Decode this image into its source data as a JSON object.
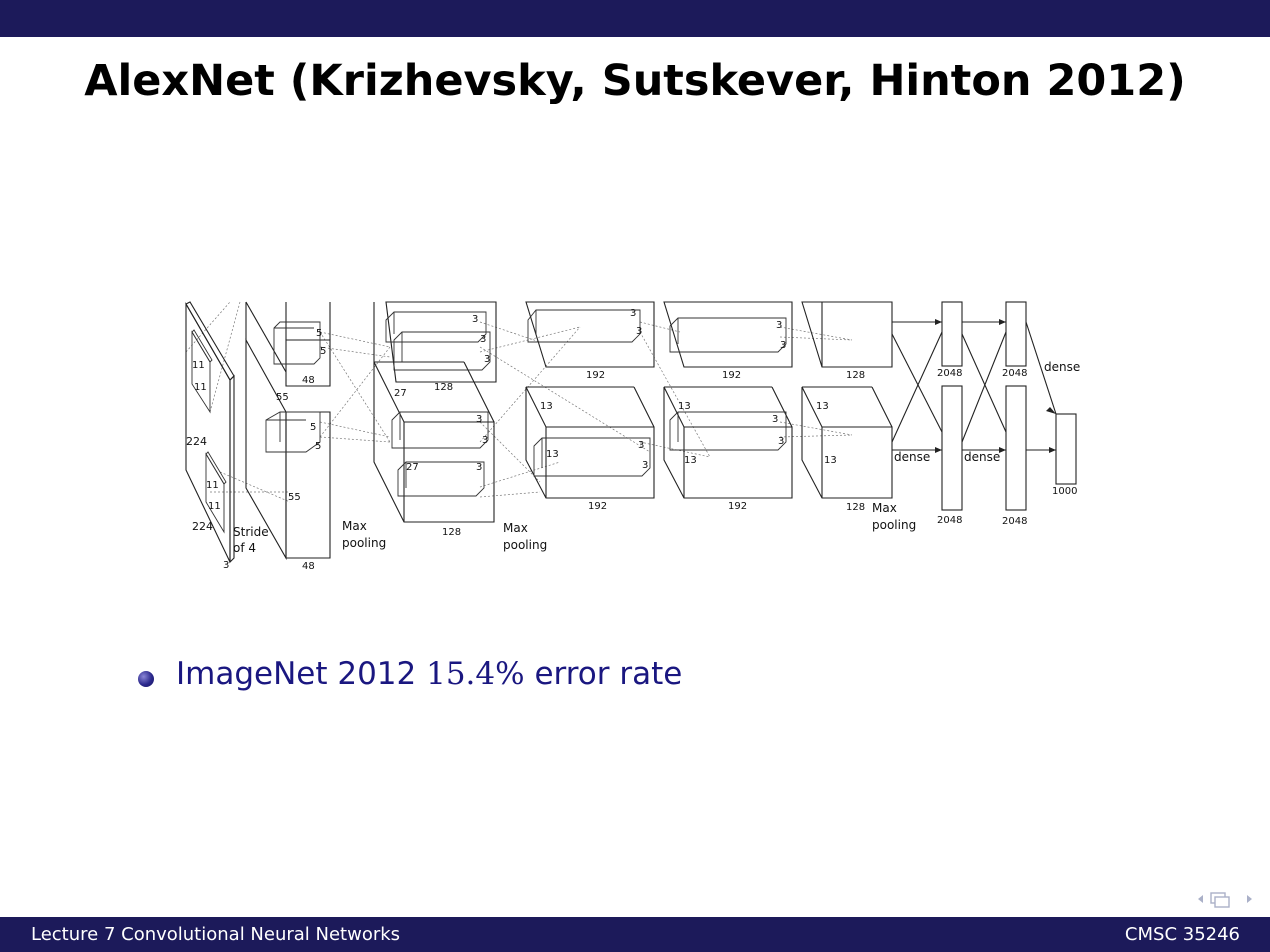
{
  "slide": {
    "title": "AlexNet (Krizhevsky, Sutskever, Hinton 2012)"
  },
  "figure": {
    "labels": {
      "input_k1": "11",
      "input_k2": "11",
      "input_k3": "11",
      "input_k4": "11",
      "input_side": "224",
      "input_bottom": "224",
      "input_depth": "3",
      "stride_line1": "Stride",
      "stride_line2": "of 4",
      "conv1_size": "55",
      "conv1_size_b": "55",
      "conv1_k1": "5",
      "conv1_k2": "5",
      "conv1_k3": "5",
      "conv1_k4": "5",
      "conv1_depth_top": "48",
      "conv1_depth_bottom": "48",
      "pool1_line1": "Max",
      "pool1_line2": "pooling",
      "conv2_size": "27",
      "conv2_size_b": "27",
      "conv2_k1": "3",
      "conv2_k2": "3",
      "conv2_k3": "3",
      "conv2_k4": "3",
      "conv2_k5": "3",
      "conv2_k6": "3",
      "conv2_depth_top": "128",
      "conv2_depth_bottom": "128",
      "pool2_line1": "Max",
      "pool2_line2": "pooling",
      "conv3_k1": "3",
      "conv3_k2": "3",
      "conv3_k3": "3",
      "conv3_k4": "3",
      "conv3_size": "13",
      "conv3_size_b": "13",
      "conv3_depth_top": "192",
      "conv3_depth_bottom": "192",
      "conv4_k1": "3",
      "conv4_k2": "3",
      "conv4_k3": "3",
      "conv4_k4": "3",
      "conv4_size": "13",
      "conv4_size_b": "13",
      "conv4_depth_top": "192",
      "conv4_depth_bottom": "192",
      "conv5_size": "13",
      "conv5_size_b": "13",
      "conv5_depth_top": "128",
      "conv5_depth_bottom": "128",
      "pool3_line1": "Max",
      "pool3_line2": "pooling",
      "dense1_label": "dense",
      "dense2_label": "dense",
      "dense3_label": "dense",
      "fc1_top": "2048",
      "fc1_bottom": "2048",
      "fc2_top": "2048",
      "fc2_bottom": "2048",
      "output": "1000"
    }
  },
  "bullets": [
    {
      "text_before": "ImageNet 2012 ",
      "math": "15.4%",
      "text_after": " error rate"
    }
  ],
  "footer": {
    "left": "Lecture 7 Convolutional Neural Networks",
    "right": "CMSC 35246"
  },
  "nav_icons": [
    "arrow-left-icon",
    "frames-icon",
    "arrow-right-icon"
  ],
  "colors": {
    "bar": "#1c1a5a",
    "bullet_text": "#1a1780",
    "bullet_dot": "#2b288c"
  }
}
